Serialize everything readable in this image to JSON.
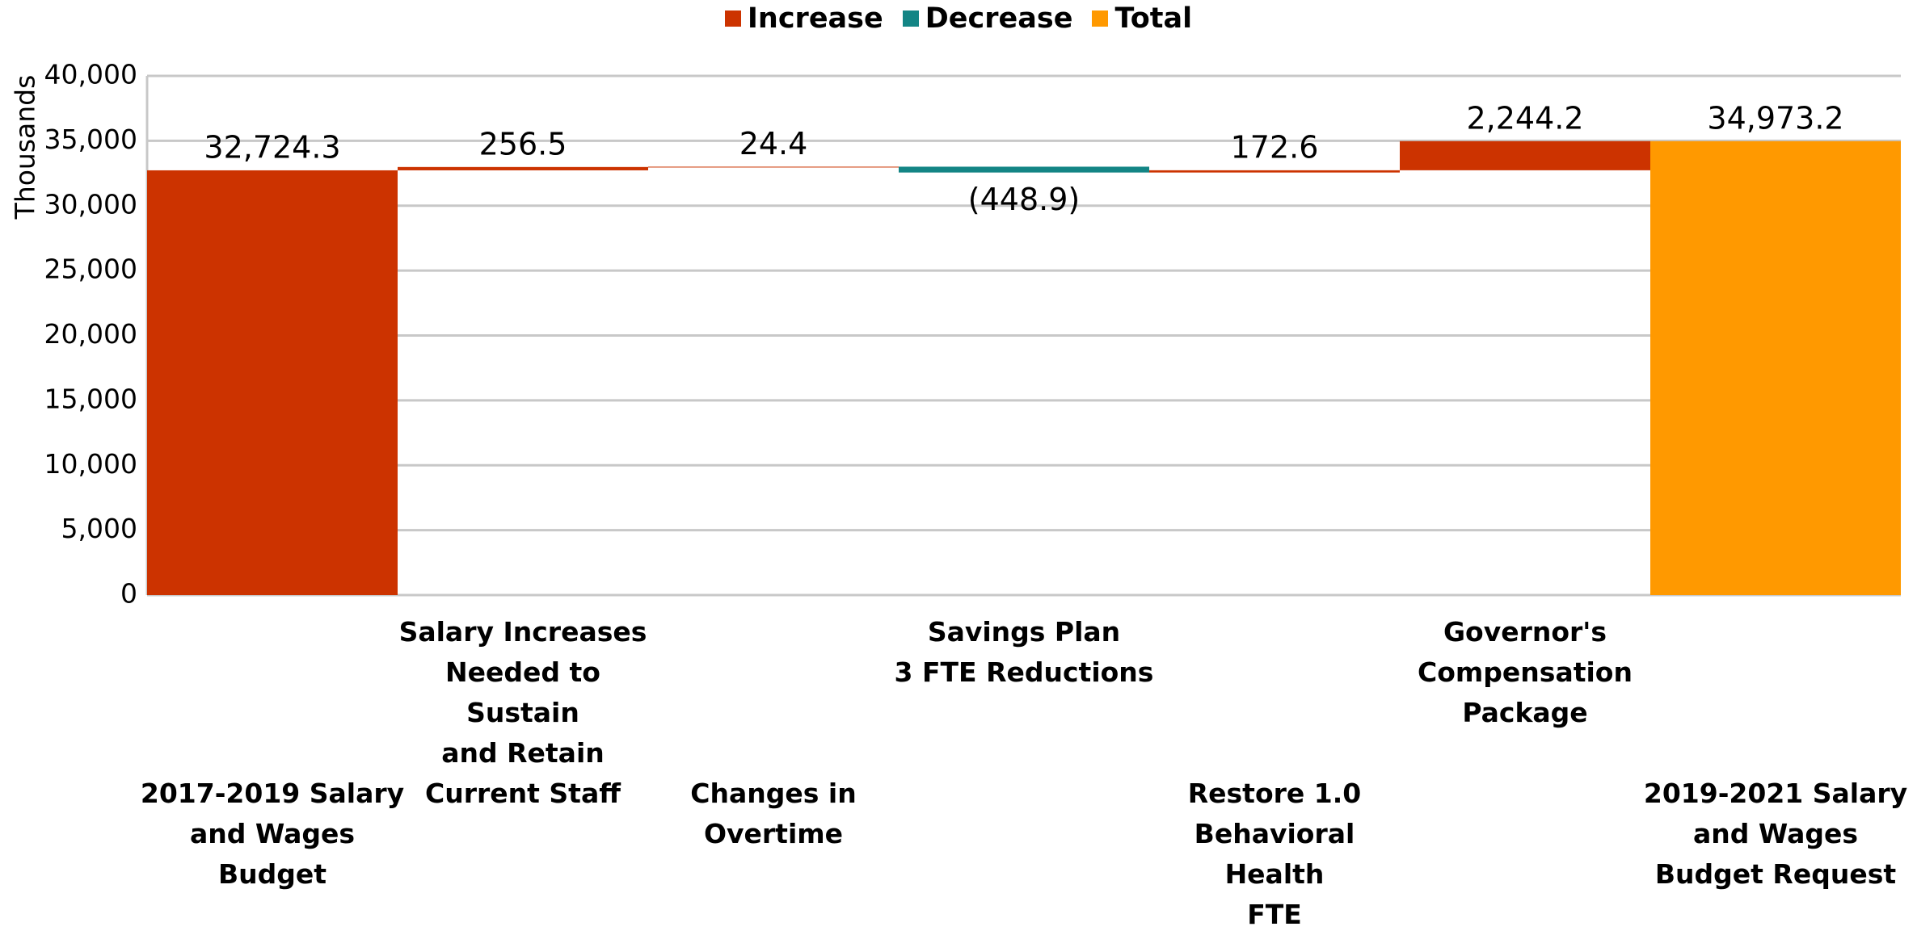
{
  "chart_data": {
    "type": "waterfall",
    "y_axis_label": "Thousands",
    "legend": [
      {
        "name": "Increase",
        "color": "#cc3300"
      },
      {
        "name": "Decrease",
        "color": "#138585"
      },
      {
        "name": "Total",
        "color": "#ff9900"
      }
    ],
    "categories": [
      "2017-2019 Salary\nand Wages Budget",
      "Salary Increases\nNeeded to Sustain\nand Retain\nCurrent Staff",
      "Changes in\nOvertime",
      "Savings Plan\n3 FTE Reductions",
      "Restore 1.0\nBehavioral Health\nFTE",
      "Governor's\nCompensation\nPackage",
      "2019-2021 Salary\nand Wages\nBudget Request"
    ],
    "values": [
      32724.3,
      256.5,
      24.4,
      -448.9,
      172.6,
      2244.2,
      34973.2
    ],
    "value_labels": [
      "32,724.3",
      "256.5",
      "24.4",
      "(448.9)",
      "172.6",
      "2,244.2",
      "34,973.2"
    ],
    "kinds": [
      0,
      0,
      0,
      1,
      0,
      0,
      2
    ],
    "ylim": [
      0,
      40000
    ],
    "yticks": [
      0,
      {
        "value": 5000,
        "label": "5,000"
      },
      {
        "value": 10000,
        "label": "10,000"
      },
      {
        "value": 15000,
        "label": "15,000"
      },
      {
        "value": 20000,
        "label": "20,000"
      },
      {
        "value": 25000,
        "label": "25,000"
      },
      {
        "value": 30000,
        "label": "30,000"
      },
      {
        "value": 35000,
        "label": "35,000"
      },
      {
        "value": 40000,
        "label": "40,000"
      }
    ],
    "grid": true
  }
}
